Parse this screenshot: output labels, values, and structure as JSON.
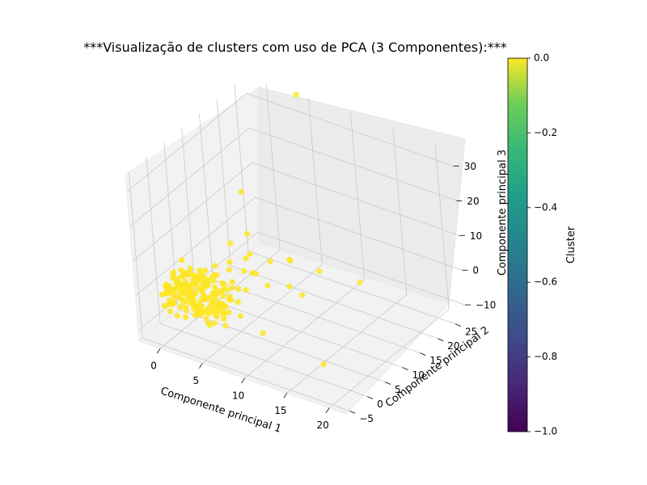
{
  "chart_data": {
    "type": "scatter",
    "projection": "3d",
    "title": "***Visualização de clusters com uso de PCA (3 Componentes):***",
    "xlabel": "Componente principal 1",
    "ylabel": "Componente principal 2",
    "zlabel": "Componente principal 3",
    "xlim": [
      -2.5,
      22
    ],
    "ylim": [
      -6,
      28
    ],
    "zlim": [
      -13,
      35
    ],
    "xticks": [
      0,
      5,
      10,
      15,
      20
    ],
    "yticks": [
      -5,
      0,
      5,
      10,
      15,
      20,
      25
    ],
    "zticks": [
      -10,
      0,
      10,
      20,
      30
    ],
    "xtick_labels": [
      "0",
      "5",
      "10",
      "15",
      "20"
    ],
    "ytick_labels": [
      "−5",
      "0",
      "5",
      "10",
      "15",
      "20",
      "25"
    ],
    "ztick_labels": [
      "−10",
      "0",
      "10",
      "20",
      "30"
    ],
    "grid": true,
    "point_color": "#fde725",
    "colorbar": {
      "label": "Cluster",
      "range": [
        -1.0,
        0.0
      ],
      "ticks": [
        "0.0",
        "−0.2",
        "−0.4",
        "−0.6",
        "−0.8",
        "−1.0"
      ],
      "colormap": "viridis"
    },
    "series": [
      {
        "cluster": 0,
        "points": [
          [
            0.2,
            -1.5,
            0.5
          ],
          [
            0.8,
            -0.5,
            1.2
          ],
          [
            1.5,
            0.5,
            -0.5
          ],
          [
            0.5,
            1.0,
            1.0
          ],
          [
            2.0,
            -1.0,
            0.8
          ],
          [
            1.2,
            2.0,
            2.5
          ],
          [
            0.0,
            0.0,
            0.0
          ],
          [
            1.8,
            1.5,
            3.0
          ],
          [
            2.5,
            0.0,
            1.5
          ],
          [
            0.6,
            2.5,
            -1.0
          ],
          [
            1.0,
            -2.0,
            -0.8
          ],
          [
            2.2,
            2.8,
            0.3
          ],
          [
            3.0,
            1.0,
            2.0
          ],
          [
            1.4,
            3.5,
            1.8
          ],
          [
            0.3,
            1.8,
            -2.0
          ],
          [
            2.8,
            -0.5,
            -1.5
          ],
          [
            3.5,
            2.2,
            0.8
          ],
          [
            1.7,
            -1.2,
            2.8
          ],
          [
            0.9,
            0.7,
            4.0
          ],
          [
            2.4,
            1.2,
            -2.5
          ],
          [
            4.0,
            0.5,
            1.0
          ],
          [
            3.2,
            3.0,
            3.5
          ],
          [
            1.1,
            4.0,
            0.0
          ],
          [
            0.4,
            -0.8,
            3.2
          ],
          [
            2.6,
            -2.0,
            0.2
          ],
          [
            3.8,
            1.8,
            -0.7
          ],
          [
            4.5,
            2.5,
            2.2
          ],
          [
            1.6,
            0.2,
            -3.0
          ],
          [
            2.0,
            3.8,
            -1.2
          ],
          [
            0.7,
            2.2,
            3.8
          ],
          [
            5.0,
            1.0,
            0.5
          ],
          [
            3.4,
            -1.0,
            2.6
          ],
          [
            4.2,
            3.2,
            1.5
          ],
          [
            1.3,
            -1.8,
            -2.2
          ],
          [
            2.9,
            0.8,
            4.5
          ],
          [
            0.1,
            1.2,
            2.0
          ],
          [
            5.5,
            2.0,
            -1.0
          ],
          [
            3.6,
            4.0,
            0.6
          ],
          [
            1.9,
            2.6,
            -3.5
          ],
          [
            4.8,
            -0.2,
            3.0
          ],
          [
            6.0,
            3.0,
            1.8
          ],
          [
            2.3,
            -0.6,
            5.0
          ],
          [
            6.5,
            1.5,
            -0.3
          ],
          [
            0.5,
            3.2,
            -0.5
          ],
          [
            3.0,
            2.0,
            -4.0
          ],
          [
            7.0,
            2.8,
            2.5
          ],
          [
            1.0,
            0.0,
            -1.5
          ],
          [
            4.0,
            1.0,
            4.2
          ],
          [
            2.7,
            3.5,
            2.0
          ],
          [
            5.2,
            0.0,
            -2.0
          ],
          [
            5.5,
            6.0,
            4.0
          ],
          [
            6.0,
            8.0,
            2.0
          ],
          [
            3.0,
            7.5,
            1.0
          ],
          [
            4.0,
            10.0,
            3.0
          ],
          [
            7.0,
            5.0,
            5.5
          ],
          [
            8.0,
            6.5,
            1.5
          ],
          [
            5.0,
            9.0,
            6.0
          ],
          [
            2.0,
            6.0,
            2.5
          ],
          [
            6.5,
            11.0,
            3.5
          ],
          [
            9.5,
            9.0,
            0.5
          ],
          [
            8.5,
            12.0,
            4.5
          ],
          [
            4.5,
            4.5,
            7.0
          ],
          [
            3.5,
            12.0,
            8.0
          ],
          [
            10.5,
            10.0,
            -2.0
          ],
          [
            2.5,
            9.5,
            6.5
          ],
          [
            11.0,
            14.0,
            2.0
          ],
          [
            9.0,
            2.0,
            -7.5
          ],
          [
            5.0,
            1.0,
            -8.0
          ],
          [
            4.0,
            -1.0,
            -7.0
          ],
          [
            14.0,
            18.0,
            -2.0
          ],
          [
            7.0,
            15.0,
            1.0
          ],
          [
            6.0,
            3.0,
            -6.0
          ],
          [
            17.0,
            0.0,
            -8.0
          ],
          [
            -0.5,
            20.0,
            10.0
          ],
          [
            4.0,
            27.0,
            36.0
          ]
        ]
      }
    ]
  }
}
